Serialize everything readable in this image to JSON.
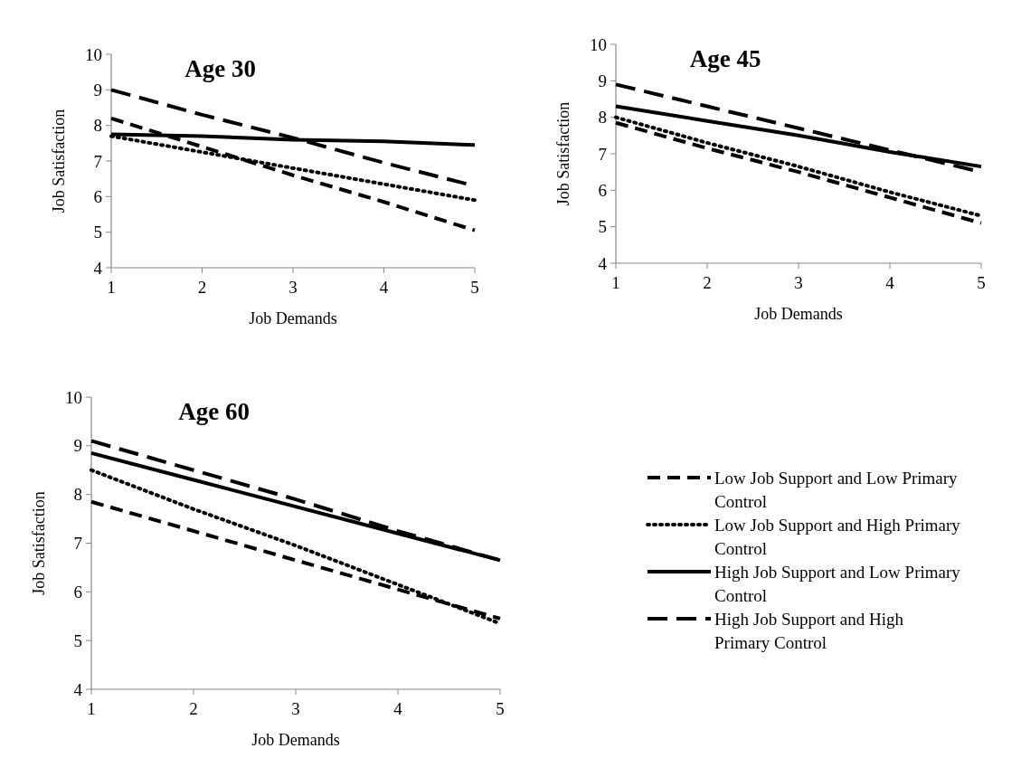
{
  "chart_data": [
    {
      "type": "line",
      "title": "Age 30",
      "xlabel": "Job Demands",
      "ylabel": "Job Satisfaction",
      "x": [
        1,
        2,
        3,
        4,
        5
      ],
      "xlim": [
        1,
        5
      ],
      "xticks": [
        1,
        2,
        3,
        4,
        5
      ],
      "ylim": [
        4,
        10
      ],
      "yticks": [
        4,
        5,
        6,
        7,
        8,
        9,
        10
      ],
      "series": [
        {
          "color": "#000000",
          "line_style": "dashed",
          "values": [
            8.2,
            7.4,
            6.6,
            5.85,
            5.05
          ]
        },
        {
          "color": "#000000",
          "line_style": "dotted",
          "values": [
            7.7,
            7.25,
            6.8,
            6.35,
            5.9
          ]
        },
        {
          "color": "#000000",
          "line_style": "solid",
          "values": [
            7.75,
            7.7,
            7.6,
            7.55,
            7.45
          ]
        },
        {
          "color": "#000000",
          "line_style": "dashed",
          "values": [
            9.0,
            8.3,
            7.65,
            6.95,
            6.3
          ]
        }
      ]
    },
    {
      "type": "line",
      "title": "Age 45",
      "xlabel": "Job Demands",
      "ylabel": "Job Satisfaction",
      "x": [
        1,
        2,
        3,
        4,
        5
      ],
      "xlim": [
        1,
        5
      ],
      "xticks": [
        1,
        2,
        3,
        4,
        5
      ],
      "ylim": [
        4,
        10
      ],
      "yticks": [
        4,
        5,
        6,
        7,
        8,
        9,
        10
      ],
      "series": [
        {
          "color": "#000000",
          "line_style": "dashed",
          "values": [
            7.85,
            7.15,
            6.5,
            5.8,
            5.1
          ]
        },
        {
          "color": "#000000",
          "line_style": "dotted",
          "values": [
            8.0,
            7.3,
            6.65,
            5.95,
            5.3
          ]
        },
        {
          "color": "#000000",
          "line_style": "solid",
          "values": [
            8.3,
            7.9,
            7.5,
            7.05,
            6.65
          ]
        },
        {
          "color": "#000000",
          "line_style": "dashed",
          "values": [
            8.9,
            8.3,
            7.7,
            7.1,
            6.5
          ]
        }
      ]
    },
    {
      "type": "line",
      "title": "Age 60",
      "xlabel": "Job Demands",
      "ylabel": "Job Satisfaction",
      "x": [
        1,
        2,
        3,
        4,
        5
      ],
      "xlim": [
        1,
        5
      ],
      "xticks": [
        1,
        2,
        3,
        4,
        5
      ],
      "ylim": [
        4,
        10
      ],
      "yticks": [
        4,
        5,
        6,
        7,
        8,
        9,
        10
      ],
      "legend": "right",
      "series": [
        {
          "name": "Low Job Support and Low Primary Control",
          "color": "#000000",
          "line_style": "dashed",
          "values": [
            7.85,
            7.25,
            6.65,
            6.05,
            5.45
          ]
        },
        {
          "name": "Low Job Support and High Primary Control",
          "color": "#000000",
          "line_style": "dotted",
          "values": [
            8.5,
            7.7,
            6.95,
            6.15,
            5.35
          ]
        },
        {
          "name": "High Job Support and Low Primary Control",
          "color": "#000000",
          "line_style": "solid",
          "values": [
            8.85,
            8.3,
            7.75,
            7.2,
            6.65
          ]
        },
        {
          "name": "High Job Support and High Primary Control",
          "color": "#000000",
          "line_style": "dashed",
          "values": [
            9.1,
            8.5,
            7.9,
            7.25,
            6.65
          ]
        }
      ]
    }
  ]
}
